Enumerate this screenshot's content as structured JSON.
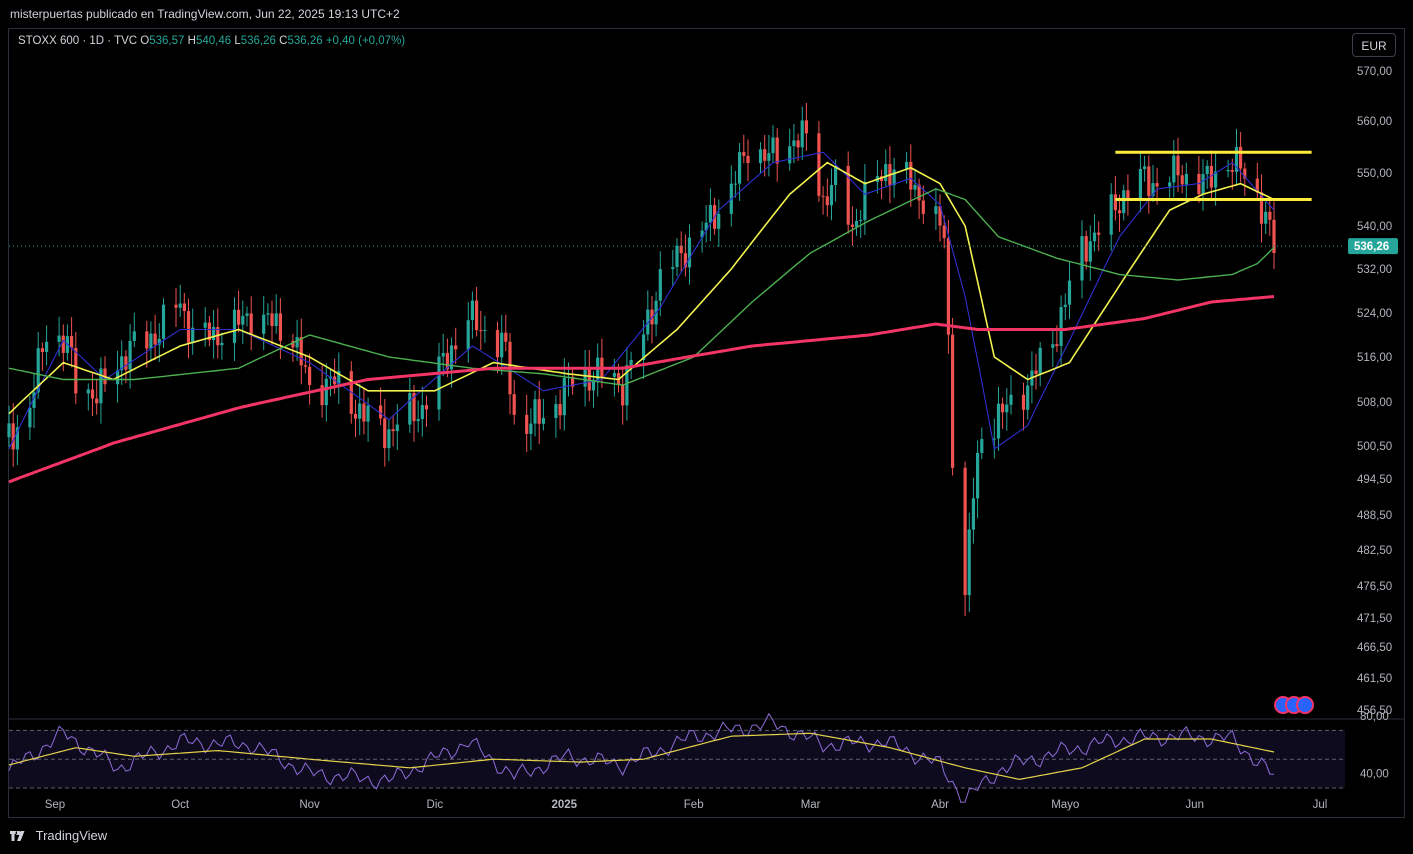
{
  "header": {
    "publish_line": "misterpuertas publicado en TradingView.com, Jun 22, 2025 19:13 UTC+2"
  },
  "legend": {
    "symbol": "STOXX 600 · 1D · TVC",
    "o_label": "O",
    "o_value": "536,57",
    "h_label": "H",
    "h_value": "540,46",
    "l_label": "L",
    "l_value": "536,26",
    "c_label": "C",
    "c_value": "536,26",
    "change": "+0,40 (+0,07%)"
  },
  "currency_button": "EUR",
  "footer": {
    "brand": "TradingView"
  },
  "colors": {
    "up": "#26a69a",
    "down": "#ef5350",
    "ma_fast": "#2f2fd0",
    "ma_mid": "#f2f24e",
    "ma_slow": "#4caf50",
    "ma_long": "#f23466",
    "levels": "#ffeb3b",
    "rsi": "#8e6cd9",
    "rsi_ma": "#e5d34a"
  },
  "chart_data": [
    {
      "type": "candlestick",
      "ylim": [
        456.5,
        572
      ],
      "y_ticks": [
        "570,00",
        "560,00",
        "550,00",
        "540,00",
        "532,00",
        "524,00",
        "516,00",
        "508,00",
        "500,50",
        "494,50",
        "488,50",
        "482,50",
        "476,50",
        "471,50",
        "466,50",
        "461,50",
        "456,50"
      ],
      "x_ticks": [
        "Sep",
        "Oct",
        "Nov",
        "Dic",
        "2025",
        "Feb",
        "Mar",
        "Abr",
        "Mayo",
        "Jun",
        "Jul"
      ],
      "last_price_label": "536,26",
      "last_price": 536.26,
      "horizontal_levels": [
        554,
        545
      ],
      "price_path": [
        [
          "2024-08-21",
          502
        ],
        [
          "2024-08-26",
          507
        ],
        [
          "2024-08-30",
          521
        ],
        [
          "2024-09-04",
          518
        ],
        [
          "2024-09-06",
          512
        ],
        [
          "2024-09-11",
          509
        ],
        [
          "2024-09-16",
          515
        ],
        [
          "2024-09-20",
          518
        ],
        [
          "2024-09-25",
          520
        ],
        [
          "2024-10-01",
          526
        ],
        [
          "2024-10-04",
          520
        ],
        [
          "2024-10-09",
          520
        ],
        [
          "2024-10-15",
          522
        ],
        [
          "2024-10-18",
          524
        ],
        [
          "2024-10-23",
          522
        ],
        [
          "2024-10-28",
          520
        ],
        [
          "2024-11-01",
          510
        ],
        [
          "2024-11-06",
          512
        ],
        [
          "2024-11-11",
          508
        ],
        [
          "2024-11-15",
          505
        ],
        [
          "2024-11-20",
          503
        ],
        [
          "2024-11-25",
          506
        ],
        [
          "2024-11-28",
          507
        ],
        [
          "2024-12-03",
          515
        ],
        [
          "2024-12-09",
          523
        ],
        [
          "2024-12-13",
          521
        ],
        [
          "2024-12-18",
          517
        ],
        [
          "2024-12-20",
          505
        ],
        [
          "2024-12-27",
          505
        ],
        [
          "2025-01-02",
          511
        ],
        [
          "2025-01-07",
          513
        ],
        [
          "2025-01-10",
          513
        ],
        [
          "2025-01-15",
          511
        ],
        [
          "2025-01-20",
          520
        ],
        [
          "2025-01-24",
          530
        ],
        [
          "2025-01-29",
          535
        ],
        [
          "2025-02-04",
          540
        ],
        [
          "2025-02-10",
          547
        ],
        [
          "2025-02-14",
          555
        ],
        [
          "2025-02-19",
          553
        ],
        [
          "2025-02-24",
          556
        ],
        [
          "2025-02-28",
          557
        ],
        [
          "2025-03-04",
          545
        ],
        [
          "2025-03-07",
          548
        ],
        [
          "2025-03-11",
          540
        ],
        [
          "2025-03-14",
          545
        ],
        [
          "2025-03-19",
          551
        ],
        [
          "2025-03-24",
          549
        ],
        [
          "2025-03-28",
          545
        ],
        [
          "2025-04-02",
          538
        ],
        [
          "2025-04-04",
          500
        ],
        [
          "2025-04-07",
          475
        ],
        [
          "2025-04-09",
          492
        ],
        [
          "2025-04-11",
          503
        ],
        [
          "2025-04-16",
          506
        ],
        [
          "2025-04-23",
          512
        ],
        [
          "2025-04-29",
          521
        ],
        [
          "2025-05-05",
          536
        ],
        [
          "2025-05-09",
          539
        ],
        [
          "2025-05-14",
          545
        ],
        [
          "2025-05-19",
          549
        ],
        [
          "2025-05-23",
          548
        ],
        [
          "2025-05-28",
          550
        ],
        [
          "2025-06-03",
          548
        ],
        [
          "2025-06-09",
          552
        ],
        [
          "2025-06-12",
          551
        ],
        [
          "2025-06-16",
          546
        ],
        [
          "2025-06-20",
          536.26
        ]
      ],
      "series": [
        {
          "name": "MA fast",
          "points": [
            [
              "2024-08-21",
              500
            ],
            [
              "2024-09-03",
              519
            ],
            [
              "2024-09-13",
              512
            ],
            [
              "2024-10-01",
              521
            ],
            [
              "2024-10-15",
              521
            ],
            [
              "2024-11-01",
              515
            ],
            [
              "2024-11-20",
              505
            ],
            [
              "2024-12-10",
              518
            ],
            [
              "2024-12-27",
              510
            ],
            [
              "2025-01-10",
              512
            ],
            [
              "2025-01-24",
              525
            ],
            [
              "2025-02-07",
              543
            ],
            [
              "2025-02-20",
              552
            ],
            [
              "2025-03-04",
              554
            ],
            [
              "2025-03-14",
              546
            ],
            [
              "2025-03-25",
              549
            ],
            [
              "2025-04-01",
              544
            ],
            [
              "2025-04-07",
              527
            ],
            [
              "2025-04-14",
              500
            ],
            [
              "2025-04-22",
              504
            ],
            [
              "2025-05-02",
              519
            ],
            [
              "2025-05-14",
              538
            ],
            [
              "2025-05-23",
              547
            ],
            [
              "2025-06-02",
              548
            ],
            [
              "2025-06-10",
              552
            ],
            [
              "2025-06-20",
              543
            ]
          ]
        },
        {
          "name": "MA mid",
          "points": [
            [
              "2024-08-21",
              506
            ],
            [
              "2024-09-03",
              515
            ],
            [
              "2024-09-15",
              512
            ],
            [
              "2024-10-01",
              518
            ],
            [
              "2024-10-15",
              521
            ],
            [
              "2024-11-01",
              516
            ],
            [
              "2024-11-15",
              510
            ],
            [
              "2024-12-01",
              510
            ],
            [
              "2024-12-15",
              515
            ],
            [
              "2025-01-02",
              513
            ],
            [
              "2025-01-14",
              512
            ],
            [
              "2025-01-28",
              521
            ],
            [
              "2025-02-10",
              532
            ],
            [
              "2025-02-24",
              546
            ],
            [
              "2025-03-05",
              552
            ],
            [
              "2025-03-14",
              548
            ],
            [
              "2025-03-25",
              551
            ],
            [
              "2025-04-01",
              548
            ],
            [
              "2025-04-07",
              540
            ],
            [
              "2025-04-14",
              516
            ],
            [
              "2025-04-22",
              512
            ],
            [
              "2025-05-02",
              515
            ],
            [
              "2025-05-14",
              529
            ],
            [
              "2025-05-26",
              543
            ],
            [
              "2025-06-03",
              546
            ],
            [
              "2025-06-12",
              548
            ],
            [
              "2025-06-20",
              545
            ]
          ]
        },
        {
          "name": "MA slow",
          "points": [
            [
              "2024-08-21",
              514
            ],
            [
              "2024-09-03",
              512
            ],
            [
              "2024-09-20",
              512
            ],
            [
              "2024-10-15",
              514
            ],
            [
              "2024-11-01",
              520
            ],
            [
              "2024-11-20",
              516
            ],
            [
              "2024-12-10",
              514
            ],
            [
              "2024-12-27",
              513
            ],
            [
              "2025-01-15",
              511
            ],
            [
              "2025-02-01",
              516
            ],
            [
              "2025-02-15",
              526
            ],
            [
              "2025-03-01",
              535
            ],
            [
              "2025-03-15",
              541
            ],
            [
              "2025-03-31",
              547
            ],
            [
              "2025-04-07",
              545
            ],
            [
              "2025-04-15",
              538
            ],
            [
              "2025-04-29",
              534
            ],
            [
              "2025-05-14",
              531
            ],
            [
              "2025-05-28",
              530
            ],
            [
              "2025-06-10",
              531
            ],
            [
              "2025-06-16",
              533
            ],
            [
              "2025-06-20",
              536
            ]
          ]
        },
        {
          "name": "MA long",
          "points": [
            [
              "2024-08-21",
              494
            ],
            [
              "2024-09-15",
              501
            ],
            [
              "2024-10-15",
              507
            ],
            [
              "2024-11-15",
              512
            ],
            [
              "2024-12-15",
              514
            ],
            [
              "2025-01-15",
              514
            ],
            [
              "2025-02-15",
              518
            ],
            [
              "2025-03-15",
              520
            ],
            [
              "2025-03-31",
              522
            ],
            [
              "2025-04-10",
              521
            ],
            [
              "2025-05-01",
              521
            ],
            [
              "2025-05-20",
              523
            ],
            [
              "2025-06-05",
              526
            ],
            [
              "2025-06-20",
              527
            ]
          ]
        }
      ]
    },
    {
      "type": "line",
      "ylim": [
        30,
        80
      ],
      "y_ticks": [
        "80,00",
        "40,00"
      ],
      "bands": [
        70,
        50,
        30
      ],
      "series": [
        {
          "name": "RSI",
          "points": [
            [
              "2024-08-21",
              42
            ],
            [
              "2024-09-03",
              68
            ],
            [
              "2024-09-16",
              44
            ],
            [
              "2024-10-01",
              62
            ],
            [
              "2024-10-18",
              60
            ],
            [
              "2024-11-01",
              40
            ],
            [
              "2024-11-20",
              35
            ],
            [
              "2024-12-09",
              62
            ],
            [
              "2024-12-20",
              38
            ],
            [
              "2025-01-02",
              52
            ],
            [
              "2025-01-15",
              46
            ],
            [
              "2025-02-01",
              66
            ],
            [
              "2025-02-20",
              75
            ],
            [
              "2025-03-04",
              60
            ],
            [
              "2025-03-19",
              62
            ],
            [
              "2025-04-01",
              46
            ],
            [
              "2025-04-07",
              22
            ],
            [
              "2025-04-16",
              44
            ],
            [
              "2025-05-01",
              56
            ],
            [
              "2025-05-14",
              64
            ],
            [
              "2025-05-28",
              66
            ],
            [
              "2025-06-10",
              64
            ],
            [
              "2025-06-20",
              38
            ]
          ]
        },
        {
          "name": "RSI MA",
          "points": [
            [
              "2024-08-21",
              46
            ],
            [
              "2024-09-06",
              58
            ],
            [
              "2024-09-20",
              52
            ],
            [
              "2024-10-10",
              56
            ],
            [
              "2024-11-01",
              50
            ],
            [
              "2024-11-25",
              44
            ],
            [
              "2024-12-15",
              50
            ],
            [
              "2025-01-05",
              48
            ],
            [
              "2025-01-20",
              50
            ],
            [
              "2025-02-10",
              66
            ],
            [
              "2025-03-01",
              68
            ],
            [
              "2025-03-20",
              58
            ],
            [
              "2025-04-07",
              44
            ],
            [
              "2025-04-20",
              36
            ],
            [
              "2025-05-05",
              44
            ],
            [
              "2025-05-20",
              64
            ],
            [
              "2025-06-05",
              64
            ],
            [
              "2025-06-20",
              55
            ]
          ]
        }
      ]
    }
  ]
}
